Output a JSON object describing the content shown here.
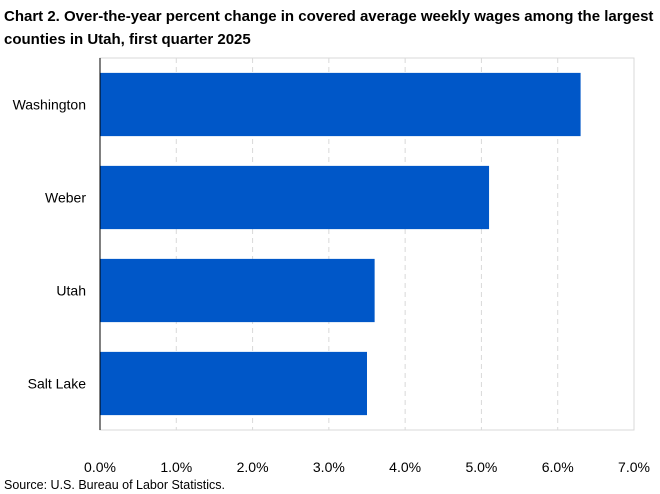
{
  "chart_data": {
    "type": "bar",
    "orientation": "horizontal",
    "title": "Chart 2. Over-the-year percent change in covered average weekly wages among the largest counties in Utah, first quarter 2025",
    "categories": [
      "Washington",
      "Weber",
      "Utah",
      "Salt Lake"
    ],
    "values": [
      6.3,
      5.1,
      3.6,
      3.5
    ],
    "value_unit": "percent",
    "xlim": [
      0,
      7
    ],
    "x_ticks": [
      "0.0%",
      "1.0%",
      "2.0%",
      "3.0%",
      "4.0%",
      "5.0%",
      "6.0%",
      "7.0%"
    ],
    "grid": "vertical dashed",
    "bar_color": "#0057C8",
    "source": "Source: U.S. Bureau of Labor Statistics."
  }
}
